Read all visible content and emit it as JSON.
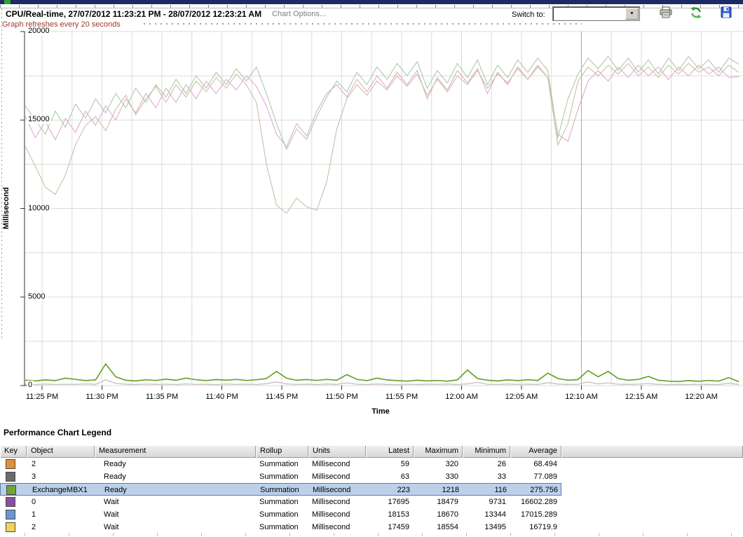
{
  "window": {
    "title": "CPU/Real-time, 27/07/2012 11:23:21 PM - 28/07/2012 12:23:21 AM",
    "chart_options_label": "Chart Options...",
    "refresh_note": "Graph refreshes every 20 seconds",
    "switch_to_label": "Switch to:",
    "switch_to_value": "",
    "dropdown_arrow": "▼",
    "toolbar_icons": [
      "printer-icon",
      "refresh-icon",
      "save-icon"
    ]
  },
  "chart_data": {
    "type": "line",
    "title": "CPU/Real-time, 27/07/2012 11:23:21 PM - 28/07/2012 12:23:21 AM",
    "xlabel": "Time",
    "ylabel": "Millisecond",
    "ylim": [
      0,
      20000
    ],
    "y_ticks": [
      "0",
      "5000",
      "10000",
      "15000",
      "20000"
    ],
    "x_ticks": [
      "11:25 PM",
      "11:30 PM",
      "11:35 PM",
      "11:40 PM",
      "11:45 PM",
      "11:50 PM",
      "11:55 PM",
      "12:00 AM",
      "12:05 AM",
      "12:10 AM",
      "12:15 AM",
      "12:20 AM"
    ],
    "grid": true,
    "legend_position": "table-below",
    "series": [
      {
        "name": "2 Ready",
        "color": "#dfb9c0",
        "selected": false,
        "values": [
          60,
          50,
          80,
          55,
          70,
          60,
          90,
          65,
          320,
          120,
          70,
          55,
          80,
          60,
          75,
          55,
          90,
          60,
          70,
          50,
          80,
          60,
          75,
          55,
          100,
          200,
          90,
          60,
          75,
          55,
          80,
          60,
          150,
          70,
          55,
          85,
          60,
          50,
          70,
          55,
          75,
          60,
          80,
          55,
          90,
          180,
          70,
          55,
          80,
          60,
          75,
          55,
          160,
          80,
          60,
          70,
          200,
          90,
          150,
          70,
          60,
          75,
          110,
          60,
          50,
          65,
          55,
          70,
          60,
          55,
          120,
          59
        ]
      },
      {
        "name": "3 Ready",
        "color": "#c6c0bd",
        "selected": false,
        "values": [
          70,
          60,
          90,
          65,
          80,
          70,
          100,
          75,
          330,
          130,
          80,
          65,
          90,
          70,
          85,
          65,
          100,
          70,
          80,
          60,
          90,
          70,
          85,
          65,
          110,
          210,
          100,
          70,
          85,
          65,
          90,
          70,
          160,
          80,
          65,
          95,
          70,
          60,
          80,
          65,
          85,
          70,
          90,
          65,
          100,
          190,
          80,
          65,
          90,
          70,
          85,
          65,
          170,
          90,
          70,
          80,
          210,
          100,
          160,
          80,
          70,
          85,
          120,
          70,
          60,
          75,
          65,
          80,
          70,
          65,
          130,
          63
        ]
      },
      {
        "name": "2 Wait",
        "color": "#e3a7d0",
        "selected": false,
        "values": [
          15200,
          14000,
          14900,
          13900,
          15100,
          14300,
          15500,
          14700,
          15800,
          15000,
          16200,
          15400,
          16500,
          15700,
          16800,
          16000,
          17000,
          16200,
          17200,
          16500,
          17300,
          16700,
          17500,
          16900,
          15800,
          14200,
          13495,
          14800,
          14100,
          15500,
          16500,
          17000,
          16300,
          17300,
          16600,
          17500,
          16800,
          17700,
          17000,
          17800,
          16200,
          17400,
          16700,
          17800,
          17100,
          17900,
          16500,
          17700,
          17000,
          18000,
          17300,
          18100,
          17400,
          14200,
          13800,
          15600,
          17200,
          17800,
          17200,
          18000,
          17400,
          18100,
          17500,
          18000,
          17300,
          18000,
          17500,
          18100,
          17600,
          18000,
          17400,
          17459
        ]
      },
      {
        "name": "0 Wait",
        "color": "#c8c0a4",
        "selected": false,
        "values": [
          13500,
          12400,
          11200,
          10800,
          11900,
          13600,
          14700,
          15200,
          14400,
          15600,
          16400,
          15300,
          16200,
          16900,
          16000,
          17000,
          16300,
          17200,
          16600,
          17400,
          16800,
          17600,
          17000,
          16000,
          12500,
          10200,
          9731,
          10600,
          10100,
          9900,
          11500,
          14500,
          16200,
          17000,
          16400,
          17200,
          16700,
          17500,
          16900,
          17600,
          16400,
          17300,
          16600,
          17500,
          17000,
          17800,
          16800,
          17600,
          17100,
          17900,
          17300,
          18000,
          17400,
          13600,
          14800,
          17200,
          18000,
          17500,
          18100,
          17600,
          18200,
          17500,
          18000,
          17400,
          18100,
          17600,
          18200,
          17700,
          18000,
          17500,
          18100,
          17695
        ]
      },
      {
        "name": "1 Wait",
        "color": "#a9cca9",
        "selected": false,
        "values": [
          15800,
          15000,
          14200,
          15500,
          14600,
          15900,
          15100,
          16200,
          15400,
          16500,
          15700,
          16800,
          16000,
          17000,
          16300,
          17300,
          16500,
          17500,
          16800,
          17700,
          17000,
          17900,
          17200,
          18000,
          16500,
          14800,
          13344,
          14500,
          13900,
          15200,
          16300,
          17200,
          16600,
          17700,
          17000,
          18000,
          17300,
          18200,
          17500,
          18300,
          16800,
          17800,
          17100,
          18200,
          17400,
          18400,
          17000,
          18100,
          17400,
          18400,
          17700,
          18500,
          17800,
          14000,
          16200,
          17600,
          18500,
          17900,
          18600,
          17800,
          18500,
          17700,
          18400,
          17600,
          18500,
          17800,
          18600,
          17900,
          18400,
          17700,
          18500,
          18153
        ]
      },
      {
        "name": "ExchangeMBX1 Ready",
        "color": "#6ba22e",
        "selected": true,
        "values": [
          300,
          260,
          320,
          280,
          420,
          350,
          280,
          320,
          1218,
          500,
          300,
          260,
          330,
          290,
          360,
          300,
          420,
          330,
          280,
          340,
          300,
          350,
          290,
          330,
          400,
          800,
          420,
          300,
          340,
          290,
          350,
          300,
          620,
          350,
          280,
          420,
          320,
          280,
          250,
          300,
          260,
          290,
          250,
          320,
          880,
          400,
          300,
          260,
          320,
          280,
          330,
          290,
          700,
          400,
          300,
          340,
          850,
          500,
          800,
          400,
          300,
          350,
          520,
          300,
          250,
          230,
          280,
          240,
          290,
          250,
          450,
          223
        ]
      }
    ]
  },
  "legend": {
    "heading": "Performance Chart Legend",
    "columns": [
      "Key",
      "Object",
      "Measurement",
      "Rollup",
      "Units",
      "Latest",
      "Maximum",
      "Minimum",
      "Average"
    ],
    "rows": [
      {
        "key_color": "#df913a",
        "object": "2",
        "measurement": "Ready",
        "rollup": "Summation",
        "units": "Millisecond",
        "latest": "59",
        "maximum": "320",
        "minimum": "26",
        "average": "68.494",
        "selected": false
      },
      {
        "key_color": "#6c6c6c",
        "object": "3",
        "measurement": "Ready",
        "rollup": "Summation",
        "units": "Millisecond",
        "latest": "63",
        "maximum": "330",
        "minimum": "33",
        "average": "77.089",
        "selected": false
      },
      {
        "key_color": "#72a43a",
        "object": "ExchangeMBX1",
        "measurement": "Ready",
        "rollup": "Summation",
        "units": "Millisecond",
        "latest": "223",
        "maximum": "1218",
        "minimum": "116",
        "average": "275.756",
        "selected": true
      },
      {
        "key_color": "#8a4fa3",
        "object": "0",
        "measurement": "Wait",
        "rollup": "Summation",
        "units": "Millisecond",
        "latest": "17695",
        "maximum": "18479",
        "minimum": "9731",
        "average": "16602.289",
        "selected": false
      },
      {
        "key_color": "#6c95d4",
        "object": "1",
        "measurement": "Wait",
        "rollup": "Summation",
        "units": "Millisecond",
        "latest": "18153",
        "maximum": "18670",
        "minimum": "13344",
        "average": "17015.289",
        "selected": false
      },
      {
        "key_color": "#f1d35a",
        "object": "2",
        "measurement": "Wait",
        "rollup": "Summation",
        "units": "Millisecond",
        "latest": "17459",
        "maximum": "18554",
        "minimum": "13495",
        "average": "16719.9",
        "selected": false
      }
    ]
  }
}
